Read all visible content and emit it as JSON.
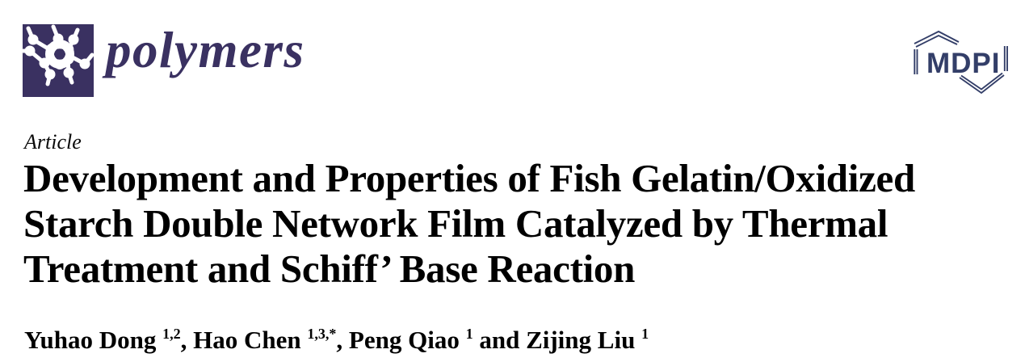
{
  "colors": {
    "journal_purple": "#3a3161",
    "mdpi_navy": "#333e68",
    "text_black": "#000000",
    "page_background": "#ffffff"
  },
  "header": {
    "journal_name": "polymers",
    "publisher_name": "MDPI"
  },
  "article": {
    "type_label": "Article",
    "title_full": "Development and Properties of Fish Gelatin/Oxidized Starch Double Network Film Catalyzed by Thermal Treatment and Schiff’ Base Reaction",
    "title_lines": [
      "Development and Properties of Fish Gelatin/Oxidized",
      "Starch Double Network Film Catalyzed by Thermal",
      "Treatment and Schiff’ Base Reaction"
    ],
    "authors": [
      {
        "name": "Yuhao Dong",
        "superscript": "1,2",
        "separator": ", "
      },
      {
        "name": "Hao Chen",
        "superscript": "1,3,*",
        "separator": ", "
      },
      {
        "name": "Peng Qiao",
        "superscript": "1",
        "separator": " and "
      },
      {
        "name": "Zijing Liu",
        "superscript": "1",
        "separator": ""
      }
    ]
  },
  "icons": {
    "journal_logo_icon": "molecule-network-icon",
    "publisher_logo_icon": "open-hexagon-icon"
  }
}
